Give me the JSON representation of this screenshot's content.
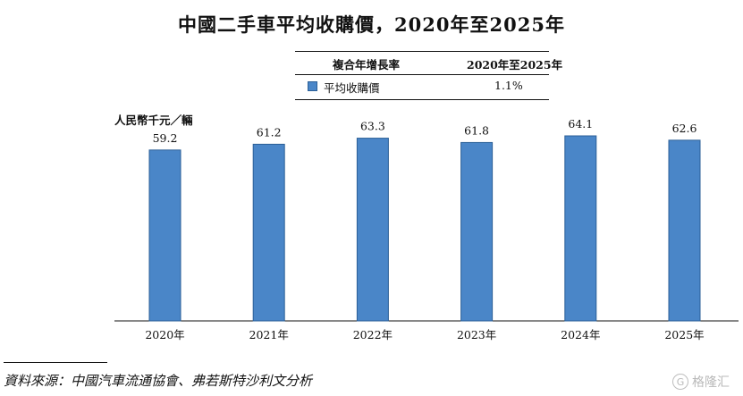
{
  "chart_data": {
    "type": "bar",
    "title": "中國二手車平均收購價，2020年至2025年",
    "ylabel": "人民幣千元／輛",
    "xlabel": "",
    "categories": [
      "2020年",
      "2021年",
      "2022年",
      "2023年",
      "2024年",
      "2025年"
    ],
    "values": [
      59.2,
      61.2,
      63.3,
      61.8,
      64.1,
      62.6
    ],
    "value_labels": [
      "59.2",
      "61.2",
      "63.3",
      "61.8",
      "64.1",
      "62.6"
    ],
    "ylim": [
      0,
      64.1
    ],
    "grid": false,
    "bar_color": "#4a86c8",
    "bar_border": "#2b5f97",
    "cagr_table": {
      "header_metric": "複合年增長率",
      "header_period": "2020年至2025年",
      "series_name": "平均收購價",
      "value": "1.1%"
    }
  },
  "source": "資料來源：中國汽車流通協會、弗若斯特沙利文分析",
  "watermark": {
    "logo_glyph": "G",
    "text": "格隆汇"
  }
}
